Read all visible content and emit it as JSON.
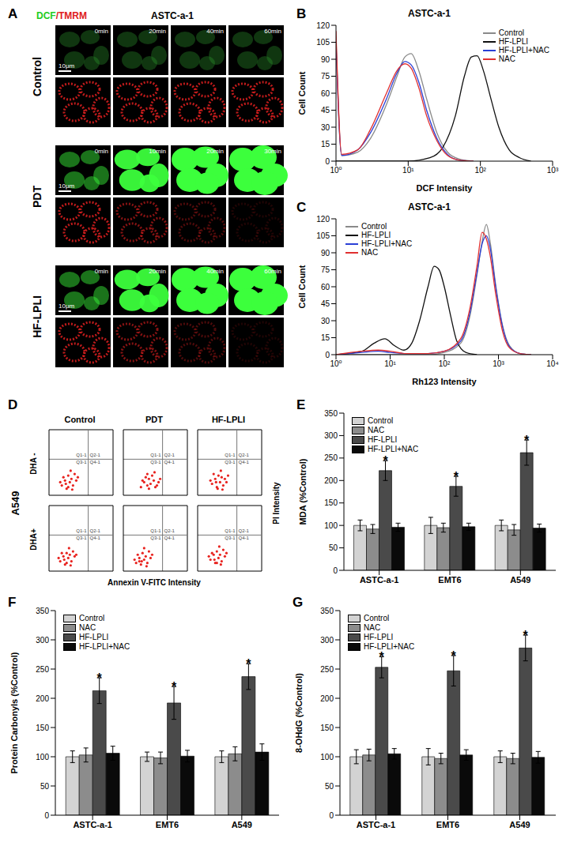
{
  "chart_data": [
    {
      "type": "image_grid",
      "panel": "A",
      "title": "ASTC-a-1",
      "channels": "DCF/TMRM",
      "blocks": [
        {
          "label": "Control",
          "times": [
            "0min",
            "20min",
            "40min",
            "60min"
          ],
          "scale_bar": "10μm"
        },
        {
          "label": "PDT",
          "times": [
            "0min",
            "10min",
            "20min",
            "30min"
          ],
          "scale_bar": "10μm"
        },
        {
          "label": "HF-LPLI",
          "times": [
            "0min",
            "20min",
            "40min",
            "60min"
          ],
          "scale_bar": "10μm"
        }
      ]
    },
    {
      "type": "line",
      "panel": "B",
      "title": "ASTC-a-1",
      "xlabel": "DCF Intensity",
      "ylabel": "Cell Count",
      "log": "x",
      "xlim": [
        1,
        1000
      ],
      "xticks": [
        {
          "value": 1,
          "label": "10⁰"
        },
        {
          "value": 10,
          "label": "10¹"
        },
        {
          "value": 100,
          "label": "10²"
        },
        {
          "value": 1000,
          "label": "10³"
        }
      ],
      "ylim": [
        0,
        120
      ],
      "yticks": [
        0,
        15,
        30,
        45,
        60,
        75,
        90,
        105,
        120
      ],
      "legend": "upper right",
      "series": [
        {
          "name": "Control",
          "color": "#8a8a8a",
          "x": [
            1,
            1.2,
            2,
            3,
            5,
            7,
            9,
            11,
            14,
            18,
            25,
            35,
            50,
            80
          ],
          "values": [
            110,
            5,
            8,
            20,
            50,
            75,
            92,
            95,
            80,
            55,
            25,
            8,
            2,
            0
          ]
        },
        {
          "name": "HF-LPLI",
          "color": "#111111",
          "x": [
            1,
            10,
            20,
            30,
            45,
            60,
            75,
            90,
            110,
            140,
            180,
            250,
            350,
            500
          ],
          "values": [
            0,
            0,
            3,
            12,
            40,
            75,
            92,
            93,
            80,
            55,
            30,
            10,
            3,
            0
          ]
        },
        {
          "name": "HF-LPLI+NAC",
          "color": "#2a3fd6",
          "x": [
            1,
            1.2,
            2,
            3,
            5,
            7,
            9,
            11,
            14,
            18,
            25,
            35,
            50,
            80
          ],
          "values": [
            105,
            5,
            10,
            25,
            55,
            78,
            88,
            85,
            70,
            45,
            20,
            6,
            1,
            0
          ]
        },
        {
          "name": "NAC",
          "color": "#e03030",
          "x": [
            1,
            1.2,
            2,
            3,
            5,
            7,
            9,
            11,
            14,
            18,
            25,
            35,
            50,
            80
          ],
          "values": [
            115,
            6,
            10,
            28,
            60,
            80,
            86,
            82,
            65,
            40,
            18,
            5,
            1,
            0
          ]
        }
      ]
    },
    {
      "type": "line",
      "panel": "C",
      "title": "ASTC-a-1",
      "xlabel": "Rh123 Intensity",
      "ylabel": "Cell Count",
      "log": "x",
      "xlim": [
        1,
        10000
      ],
      "xticks": [
        {
          "value": 1,
          "label": "10⁰"
        },
        {
          "value": 10,
          "label": "10¹"
        },
        {
          "value": 100,
          "label": "10²"
        },
        {
          "value": 1000,
          "label": "10³"
        },
        {
          "value": 10000,
          "label": "10⁴"
        }
      ],
      "ylim": [
        0,
        120
      ],
      "yticks": [
        0,
        15,
        30,
        45,
        60,
        75,
        90,
        105,
        120
      ],
      "legend": "upper left",
      "series": [
        {
          "name": "Control",
          "color": "#8a8a8a",
          "x": [
            1,
            50,
            100,
            200,
            300,
            400,
            500,
            600,
            700,
            900,
            1200,
            1600,
            2500,
            4000
          ],
          "values": [
            0,
            0,
            2,
            10,
            35,
            70,
            100,
            115,
            100,
            60,
            25,
            8,
            1,
            0
          ]
        },
        {
          "name": "HF-LPLI",
          "color": "#111111",
          "x": [
            1,
            3,
            5,
            8,
            12,
            18,
            25,
            35,
            50,
            65,
            80,
            100,
            130,
            170,
            250,
            400
          ],
          "values": [
            0,
            3,
            10,
            14,
            8,
            4,
            10,
            30,
            60,
            78,
            75,
            60,
            35,
            12,
            2,
            0
          ]
        },
        {
          "name": "HF-LPLI+NAC",
          "color": "#2a3fd6",
          "x": [
            1,
            3,
            6,
            10,
            20,
            50,
            100,
            200,
            300,
            400,
            500,
            600,
            700,
            900,
            1200,
            1600,
            2500,
            4000
          ],
          "values": [
            0,
            2,
            3,
            2,
            1,
            1,
            3,
            12,
            38,
            72,
            98,
            105,
            95,
            58,
            24,
            7,
            1,
            0
          ]
        },
        {
          "name": "NAC",
          "color": "#e03030",
          "x": [
            1,
            3,
            6,
            10,
            20,
            50,
            100,
            200,
            300,
            400,
            500,
            600,
            700,
            900,
            1200,
            1600,
            2500,
            4000
          ],
          "values": [
            0,
            3,
            4,
            3,
            1,
            1,
            3,
            14,
            42,
            78,
            108,
            102,
            88,
            52,
            20,
            6,
            1,
            0
          ]
        }
      ]
    },
    {
      "type": "scatter",
      "panel": "D",
      "cell_line": "A549",
      "columns": [
        "Control",
        "PDT",
        "HF-LPLI"
      ],
      "rows": [
        "DHA -",
        "DHA+"
      ],
      "xlabel": "Annexin V-FITC Intensity",
      "ylabel": "PI Intensity",
      "tick_labels": false,
      "color": "#e8231f",
      "xlim": [
        0,
        4
      ],
      "ylim": [
        0,
        4
      ],
      "quadrant_x": 2.45,
      "quadrant_y": 2.2,
      "quadrant_labels": [
        "Q1-1",
        "Q2-1",
        "Q3-1",
        "Q4-1"
      ],
      "plots": [
        [
          [
            [
              0.8,
              0.6
            ],
            [
              1.0,
              0.9
            ],
            [
              1.1,
              0.4
            ],
            [
              1.2,
              1.2
            ],
            [
              1.3,
              0.8
            ],
            [
              1.4,
              1.0
            ],
            [
              1.5,
              0.6
            ],
            [
              1.6,
              1.3
            ],
            [
              1.2,
              0.5
            ],
            [
              0.9,
              1.1
            ],
            [
              1.7,
              0.9
            ],
            [
              1.35,
              1.5
            ],
            [
              1.05,
              0.7
            ],
            [
              1.45,
              0.35
            ],
            [
              1.8,
              1.1
            ],
            [
              0.7,
              0.8
            ]
          ],
          [
            [
              1.1,
              0.5
            ],
            [
              1.3,
              0.8
            ],
            [
              1.5,
              0.6
            ],
            [
              1.6,
              1.0
            ],
            [
              1.7,
              0.7
            ],
            [
              1.9,
              0.9
            ],
            [
              2.0,
              0.5
            ],
            [
              1.8,
              1.2
            ],
            [
              1.4,
              1.1
            ],
            [
              2.2,
              0.8
            ],
            [
              1.6,
              0.4
            ],
            [
              2.3,
              1.0
            ],
            [
              1.2,
              0.9
            ],
            [
              1.95,
              1.4
            ],
            [
              2.1,
              0.6
            ],
            [
              1.5,
              1.3
            ]
          ],
          [
            [
              0.9,
              0.7
            ],
            [
              1.1,
              1.0
            ],
            [
              1.2,
              0.5
            ],
            [
              1.3,
              1.2
            ],
            [
              1.4,
              0.8
            ],
            [
              1.5,
              1.1
            ],
            [
              1.6,
              0.6
            ],
            [
              1.7,
              1.0
            ],
            [
              1.25,
              0.4
            ],
            [
              1.0,
              1.3
            ],
            [
              1.8,
              0.8
            ],
            [
              1.45,
              1.5
            ],
            [
              1.15,
              0.8
            ],
            [
              1.55,
              0.35
            ],
            [
              1.9,
              1.2
            ],
            [
              0.8,
              0.9
            ]
          ]
        ],
        [
          [
            [
              0.7,
              0.6
            ],
            [
              0.9,
              0.9
            ],
            [
              1.0,
              0.4
            ],
            [
              1.1,
              1.1
            ],
            [
              1.2,
              0.8
            ],
            [
              1.3,
              1.0
            ],
            [
              1.4,
              0.6
            ],
            [
              1.5,
              1.2
            ],
            [
              1.1,
              0.5
            ],
            [
              0.8,
              1.1
            ],
            [
              1.6,
              0.9
            ],
            [
              1.25,
              1.4
            ],
            [
              0.95,
              0.7
            ],
            [
              1.35,
              0.35
            ],
            [
              1.7,
              1.0
            ],
            [
              0.6,
              0.8
            ]
          ],
          [
            [
              0.8,
              0.5
            ],
            [
              1.0,
              0.8
            ],
            [
              1.1,
              0.4
            ],
            [
              1.2,
              1.1
            ],
            [
              1.3,
              0.7
            ],
            [
              1.4,
              0.9
            ],
            [
              1.5,
              0.5
            ],
            [
              1.6,
              1.2
            ],
            [
              1.15,
              0.6
            ],
            [
              0.9,
              1.0
            ],
            [
              1.7,
              0.8
            ],
            [
              1.3,
              1.4
            ],
            [
              1.0,
              0.6
            ],
            [
              1.45,
              0.3
            ],
            [
              1.8,
              1.0
            ],
            [
              0.7,
              0.7
            ]
          ],
          [
            [
              0.8,
              0.7
            ],
            [
              1.0,
              1.0
            ],
            [
              1.1,
              0.5
            ],
            [
              1.2,
              1.2
            ],
            [
              1.3,
              0.8
            ],
            [
              1.4,
              1.0
            ],
            [
              1.5,
              0.6
            ],
            [
              1.6,
              1.3
            ],
            [
              1.2,
              0.5
            ],
            [
              0.9,
              1.1
            ],
            [
              1.7,
              0.9
            ],
            [
              1.35,
              1.5
            ],
            [
              1.05,
              0.7
            ],
            [
              1.45,
              0.4
            ],
            [
              1.8,
              1.1
            ],
            [
              0.7,
              0.9
            ]
          ]
        ]
      ]
    },
    {
      "type": "bar",
      "panel": "E",
      "ylabel": "MDA (%Control)",
      "categories": [
        "ASTC-a-1",
        "EMT6",
        "A549"
      ],
      "ylim": [
        0,
        350
      ],
      "yticks": [
        0,
        50,
        100,
        150,
        200,
        250,
        300,
        350
      ],
      "legend": "upper left",
      "series": [
        {
          "name": "Control",
          "color": "#d3d3d3",
          "values": [
            100,
            100,
            100
          ],
          "errors": [
            12,
            18,
            12
          ]
        },
        {
          "name": "NAC",
          "color": "#8c8c8c",
          "values": [
            92,
            95,
            90
          ],
          "errors": [
            10,
            10,
            12
          ]
        },
        {
          "name": "HF-LPLI",
          "color": "#4a4a4a",
          "values": [
            222,
            187,
            262
          ],
          "errors": [
            22,
            22,
            28
          ],
          "annotations": [
            "*",
            "*",
            "*"
          ]
        },
        {
          "name": "HF-LPLI+NAC",
          "color": "#0a0a0a",
          "values": [
            96,
            97,
            94
          ],
          "errors": [
            9,
            8,
            9
          ]
        }
      ]
    },
    {
      "type": "bar",
      "panel": "F",
      "ylabel": "Protein Carbonyls (%Control)",
      "categories": [
        "ASTC-a-1",
        "EMT6",
        "A549"
      ],
      "ylim": [
        0,
        350
      ],
      "yticks": [
        0,
        50,
        100,
        150,
        200,
        250,
        300,
        350
      ],
      "legend": "upper left",
      "series": [
        {
          "name": "Control",
          "color": "#d3d3d3",
          "values": [
            100,
            100,
            100
          ],
          "errors": [
            10,
            8,
            10
          ]
        },
        {
          "name": "NAC",
          "color": "#8c8c8c",
          "values": [
            103,
            98,
            105
          ],
          "errors": [
            12,
            10,
            12
          ]
        },
        {
          "name": "HF-LPLI",
          "color": "#4a4a4a",
          "values": [
            213,
            192,
            237
          ],
          "errors": [
            22,
            28,
            22
          ],
          "annotations": [
            "*",
            "*",
            "*"
          ]
        },
        {
          "name": "HF-LPLI+NAC",
          "color": "#0a0a0a",
          "values": [
            106,
            101,
            108
          ],
          "errors": [
            12,
            10,
            14
          ]
        }
      ]
    },
    {
      "type": "bar",
      "panel": "G",
      "ylabel": "8-OHdG (%Control)",
      "categories": [
        "ASTC-a-1",
        "EMT6",
        "A549"
      ],
      "ylim": [
        0,
        350
      ],
      "yticks": [
        0,
        50,
        100,
        150,
        200,
        250,
        300,
        350
      ],
      "legend": "upper left",
      "series": [
        {
          "name": "Control",
          "color": "#d3d3d3",
          "values": [
            100,
            100,
            100
          ],
          "errors": [
            12,
            14,
            10
          ]
        },
        {
          "name": "NAC",
          "color": "#8c8c8c",
          "values": [
            103,
            97,
            97
          ],
          "errors": [
            10,
            9,
            9
          ]
        },
        {
          "name": "HF-LPLI",
          "color": "#4a4a4a",
          "values": [
            253,
            247,
            286
          ],
          "errors": [
            18,
            26,
            22
          ],
          "annotations": [
            "*",
            "*",
            "*"
          ]
        },
        {
          "name": "HF-LPLI+NAC",
          "color": "#0a0a0a",
          "values": [
            105,
            103,
            99
          ],
          "errors": [
            9,
            9,
            10
          ]
        }
      ]
    }
  ]
}
